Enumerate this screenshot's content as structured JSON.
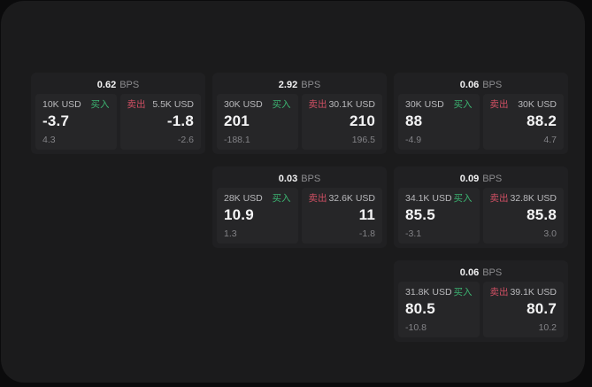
{
  "labels": {
    "buy": "买入",
    "sell": "卖出",
    "bps_unit": "BPS"
  },
  "colors": {
    "buy": "#3cb371",
    "sell": "#cf4f63",
    "panel_bg": "#1b1b1c",
    "card_bg": "#202022",
    "tile_bg": "#262628",
    "price_text": "#f4f4f5",
    "muted_text": "#838387"
  },
  "cards": [
    {
      "bps": "0.62",
      "buy": {
        "amount": "10K USD",
        "price": "-3.7",
        "delta": "4.3"
      },
      "sell": {
        "amount": "5.5K USD",
        "price": "-1.8",
        "delta": "-2.6"
      }
    },
    {
      "bps": "2.92",
      "buy": {
        "amount": "30K USD",
        "price": "201",
        "delta": "-188.1"
      },
      "sell": {
        "amount": "30.1K USD",
        "price": "210",
        "delta": "196.5"
      }
    },
    {
      "bps": "0.06",
      "buy": {
        "amount": "30K USD",
        "price": "88",
        "delta": "-4.9"
      },
      "sell": {
        "amount": "30K USD",
        "price": "88.2",
        "delta": "4.7"
      }
    },
    {
      "bps": "0.03",
      "buy": {
        "amount": "28K USD",
        "price": "10.9",
        "delta": "1.3"
      },
      "sell": {
        "amount": "32.6K USD",
        "price": "11",
        "delta": "-1.8"
      }
    },
    {
      "bps": "0.09",
      "buy": {
        "amount": "34.1K USD",
        "price": "85.5",
        "delta": "-3.1"
      },
      "sell": {
        "amount": "32.8K USD",
        "price": "85.8",
        "delta": "3.0"
      }
    },
    {
      "bps": "0.06",
      "buy": {
        "amount": "31.8K USD",
        "price": "80.5",
        "delta": "-10.8"
      },
      "sell": {
        "amount": "39.1K USD",
        "price": "80.7",
        "delta": "10.2"
      }
    }
  ]
}
